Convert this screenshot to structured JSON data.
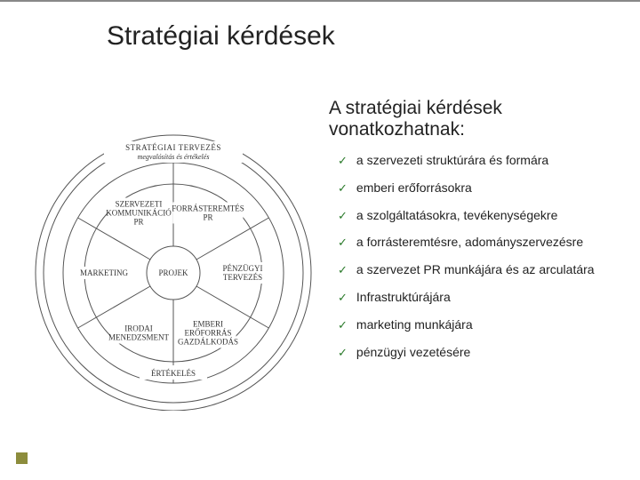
{
  "title": "Stratégiai kérdések",
  "subtitle": "A stratégiai kérdések vonatkozhatnak:",
  "bullets": [
    "a szervezeti struktúrára és formára",
    "emberi erőforrásokra",
    "a szolgáltatásokra, tevékenységekre",
    "a forrásteremtésre, adományszervezésre",
    "a szervezet PR munkájára és az arculatára",
    "Infrastruktúrájára",
    "marketing munkájára",
    "pénzügyi vezetésére"
  ],
  "wheel": {
    "type": "radial-diagram",
    "background_color": "#ffffff",
    "stroke_color": "#555555",
    "stroke_width": 1,
    "outer_radius": 160,
    "ring_radii": [
      160,
      148,
      124,
      100
    ],
    "center_label": "PROJEK",
    "top_band": {
      "title": "STRATÉGIAI TERVEZÉS",
      "sub": "megvalósítás és értékelés"
    },
    "segments": [
      {
        "label_lines": [
          "FORRÁSTEREMTÉS",
          "PR"
        ],
        "angle_deg": 30
      },
      {
        "label_lines": [
          "PÉNZÜGYI",
          "TERVEZÉS"
        ],
        "angle_deg": 90
      },
      {
        "label_lines": [
          "EMBERI",
          "ERŐFORRÁS",
          "GAZDÁLKODÁS"
        ],
        "angle_deg": 150
      },
      {
        "label_lines": [
          "IRODAI",
          "MENEDZSMENT"
        ],
        "angle_deg": 210
      },
      {
        "label_lines": [
          "MARKETING"
        ],
        "angle_deg": 270
      },
      {
        "label_lines": [
          "SZERVEZETI",
          "KOMMUNIKÁCIÓ",
          "PR"
        ],
        "angle_deg": 330
      }
    ],
    "bottom_label": "ÉRTÉKELÉS"
  },
  "colors": {
    "check": "#2a7a2a",
    "accent": "#8c8c3c",
    "text": "#222222"
  }
}
